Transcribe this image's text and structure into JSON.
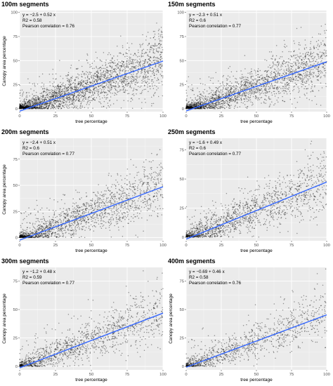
{
  "chart_data": [
    {
      "type": "scatter",
      "title": "100m segments",
      "xlabel": "tree percentage",
      "ylabel": "Canopy area percentage",
      "xlim": [
        0,
        100
      ],
      "ylim": [
        -3,
        102
      ],
      "xticks": [
        "0",
        "25",
        "50",
        "75",
        "100"
      ],
      "yticks": [
        "0",
        "25",
        "50",
        "75",
        "100"
      ],
      "yticks_values": [
        0,
        25,
        50,
        75,
        100
      ],
      "fit": {
        "intercept": -2.5,
        "slope": 0.52
      },
      "annotations": [
        "y = −2.5 + 0.52 x",
        "R2 = 0.58",
        "Pearson correlation = 0.76"
      ],
      "point_color": "#000000",
      "line_color": "#3366ff",
      "grid": true
    },
    {
      "type": "scatter",
      "title": "150m segments",
      "xlabel": "tree percentage",
      "ylabel": "",
      "xlim": [
        0,
        100
      ],
      "ylim": [
        -3,
        102
      ],
      "xticks": [
        "0",
        "25",
        "50",
        "75",
        "100"
      ],
      "yticks": [
        "0",
        "25",
        "50",
        "75",
        "100"
      ],
      "yticks_values": [
        0,
        25,
        50,
        75,
        100
      ],
      "fit": {
        "intercept": -2.3,
        "slope": 0.51
      },
      "annotations": [
        "y = −2.3 + 0.51 x",
        "R2 = 0.6",
        "Pearson correlation = 0.77"
      ],
      "point_color": "#000000",
      "line_color": "#3366ff",
      "grid": true
    },
    {
      "type": "scatter",
      "title": "200m segments",
      "xlabel": "tree percentage",
      "ylabel": "Canopy area percentage",
      "xlim": [
        0,
        100
      ],
      "ylim": [
        -3,
        95
      ],
      "xticks": [
        "0",
        "25",
        "50",
        "75",
        "100"
      ],
      "yticks": [
        "0",
        "25",
        "50",
        "75"
      ],
      "yticks_values": [
        0,
        25,
        50,
        75
      ],
      "fit": {
        "intercept": -2.4,
        "slope": 0.51
      },
      "annotations": [
        "y = −2.4 + 0.51 x",
        "R2 = 0.6",
        "Pearson correlation = 0.77"
      ],
      "point_color": "#000000",
      "line_color": "#3366ff",
      "grid": true
    },
    {
      "type": "scatter",
      "title": "250m segments",
      "xlabel": "tree percentage",
      "ylabel": "",
      "xlim": [
        0,
        100
      ],
      "ylim": [
        -3,
        85
      ],
      "xticks": [
        "0",
        "25",
        "50",
        "75",
        "100"
      ],
      "yticks": [
        "0",
        "25",
        "50",
        "75"
      ],
      "yticks_values": [
        0,
        25,
        50,
        75
      ],
      "fit": {
        "intercept": -1.6,
        "slope": 0.49
      },
      "annotations": [
        "y = −1.6 + 0.49 x",
        "R2 = 0.6",
        "Pearson correlation = 0.77"
      ],
      "point_color": "#000000",
      "line_color": "#3366ff",
      "grid": true
    },
    {
      "type": "scatter",
      "title": "300m segments",
      "xlabel": "tree percentage",
      "ylabel": "Canopy area percentage",
      "xlim": [
        0,
        100
      ],
      "ylim": [
        -3,
        87
      ],
      "xticks": [
        "0",
        "25",
        "50",
        "75",
        "100"
      ],
      "yticks": [
        "0",
        "25",
        "50",
        "75"
      ],
      "yticks_values": [
        0,
        25,
        50,
        75
      ],
      "fit": {
        "intercept": -1.2,
        "slope": 0.48
      },
      "annotations": [
        "y = −1.2 + 0.48 x",
        "R2 = 0.59",
        "Pearson correlation = 0.77"
      ],
      "point_color": "#000000",
      "line_color": "#3366ff",
      "grid": true
    },
    {
      "type": "scatter",
      "title": "400m segments",
      "xlabel": "tree percentage",
      "ylabel": "Canopy area percentage",
      "xlim": [
        0,
        100
      ],
      "ylim": [
        -3,
        87
      ],
      "xticks": [
        "0",
        "25",
        "50",
        "75",
        "100"
      ],
      "yticks": [
        "0",
        "25",
        "50",
        "75"
      ],
      "yticks_values": [
        0,
        25,
        50,
        75
      ],
      "fit": {
        "intercept": -0.69,
        "slope": 0.46
      },
      "annotations": [
        "y = −0.69 + 0.46 x",
        "R2 = 0.58",
        "Pearson correlation = 0.76"
      ],
      "point_color": "#000000",
      "line_color": "#3366ff",
      "grid": true
    }
  ]
}
